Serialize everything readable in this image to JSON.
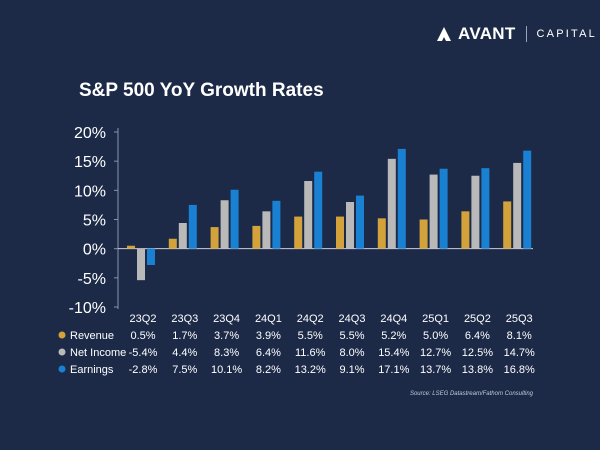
{
  "logo": {
    "brand": "AVANT",
    "sub": "CAPITAL"
  },
  "chart_data": {
    "type": "bar",
    "title": "S&P 500 YoY Growth Rates",
    "categories": [
      "23Q2",
      "23Q3",
      "23Q4",
      "24Q1",
      "24Q2",
      "24Q3",
      "24Q4",
      "25Q1",
      "25Q2",
      "25Q3"
    ],
    "series": [
      {
        "name": "Revenue",
        "color": "#d4a23a",
        "values": [
          0.5,
          1.7,
          3.7,
          3.9,
          5.5,
          5.5,
          5.2,
          5.0,
          6.4,
          8.1
        ],
        "labels": [
          "0.5%",
          "1.7%",
          "3.7%",
          "3.9%",
          "5.5%",
          "5.5%",
          "5.2%",
          "5.0%",
          "6.4%",
          "8.1%"
        ]
      },
      {
        "name": "Net Income",
        "color": "#b9b9b9",
        "values": [
          -5.4,
          4.4,
          8.3,
          6.4,
          11.6,
          8.0,
          15.4,
          12.7,
          12.5,
          14.7
        ],
        "labels": [
          "-5.4%",
          "4.4%",
          "8.3%",
          "6.4%",
          "11.6%",
          "8.0%",
          "15.4%",
          "12.7%",
          "12.5%",
          "14.7%"
        ]
      },
      {
        "name": "Earnings",
        "color": "#1a80d2",
        "values": [
          -2.8,
          7.5,
          10.1,
          8.2,
          13.2,
          9.1,
          17.1,
          13.7,
          13.8,
          16.8
        ],
        "labels": [
          "-2.8%",
          "7.5%",
          "10.1%",
          "8.2%",
          "13.2%",
          "9.1%",
          "17.1%",
          "13.7%",
          "13.8%",
          "16.8%"
        ]
      }
    ],
    "ylim": [
      -10,
      20
    ],
    "yticks": [
      20,
      15,
      10,
      5,
      0,
      -5,
      -10
    ],
    "ytick_labels": [
      "20%",
      "15%",
      "10%",
      "5%",
      "0%",
      "-5%",
      "-10%"
    ],
    "legend": "table-left",
    "source": "Source: LSEG Datastream/Fathom Consulting"
  }
}
